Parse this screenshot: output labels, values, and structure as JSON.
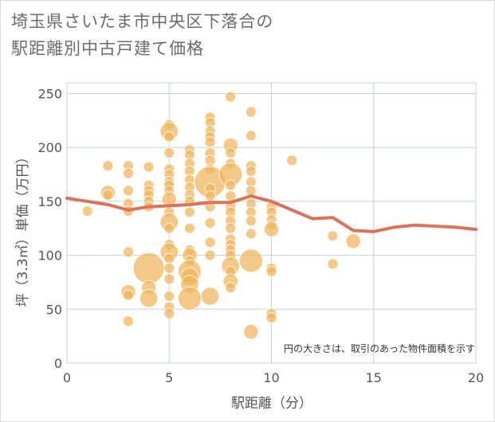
{
  "chart_data": {
    "type": "scatter",
    "title_lines": [
      "埼玉県さいたま市中央区下落合の",
      "駅距離別中古戸建て価格"
    ],
    "xlabel": "駅距離（分）",
    "ylabel": "坪（3.3㎡）単価（万円）",
    "xlim": [
      0,
      20
    ],
    "ylim": [
      0,
      260
    ],
    "xticks": [
      0,
      5,
      10,
      15,
      20
    ],
    "yticks": [
      0,
      50,
      100,
      150,
      200,
      250
    ],
    "grid": true,
    "annotation": "円の大きさは、取引のあった物件面積を示す",
    "colors": {
      "bubble": "#f0b45a",
      "line": "#d9735a"
    },
    "scatter_points": [
      {
        "x": 1,
        "y": 141,
        "s": 1
      },
      {
        "x": 2,
        "y": 183,
        "s": 1
      },
      {
        "x": 2,
        "y": 158,
        "s": 2
      },
      {
        "x": 2,
        "y": 156,
        "s": 1
      },
      {
        "x": 3,
        "y": 183,
        "s": 1
      },
      {
        "x": 3,
        "y": 176,
        "s": 1
      },
      {
        "x": 3,
        "y": 160,
        "s": 1
      },
      {
        "x": 3,
        "y": 148,
        "s": 1
      },
      {
        "x": 3,
        "y": 141,
        "s": 1
      },
      {
        "x": 3,
        "y": 103,
        "s": 1
      },
      {
        "x": 3,
        "y": 66,
        "s": 2
      },
      {
        "x": 3,
        "y": 63,
        "s": 1
      },
      {
        "x": 3,
        "y": 39,
        "s": 1
      },
      {
        "x": 4,
        "y": 182,
        "s": 1
      },
      {
        "x": 4,
        "y": 165,
        "s": 1
      },
      {
        "x": 4,
        "y": 160,
        "s": 1
      },
      {
        "x": 4,
        "y": 156,
        "s": 1
      },
      {
        "x": 4,
        "y": 150,
        "s": 1
      },
      {
        "x": 4,
        "y": 145,
        "s": 1
      },
      {
        "x": 4,
        "y": 88,
        "s": 9
      },
      {
        "x": 4,
        "y": 70,
        "s": 2
      },
      {
        "x": 4,
        "y": 60,
        "s": 3
      },
      {
        "x": 5,
        "y": 221,
        "s": 1
      },
      {
        "x": 5,
        "y": 215,
        "s": 3
      },
      {
        "x": 5,
        "y": 210,
        "s": 1
      },
      {
        "x": 5,
        "y": 195,
        "s": 1
      },
      {
        "x": 5,
        "y": 180,
        "s": 1
      },
      {
        "x": 5,
        "y": 175,
        "s": 1
      },
      {
        "x": 5,
        "y": 168,
        "s": 1
      },
      {
        "x": 5,
        "y": 165,
        "s": 1
      },
      {
        "x": 5,
        "y": 160,
        "s": 1
      },
      {
        "x": 5,
        "y": 152,
        "s": 2
      },
      {
        "x": 5,
        "y": 140,
        "s": 1
      },
      {
        "x": 5,
        "y": 131,
        "s": 3
      },
      {
        "x": 5,
        "y": 125,
        "s": 1
      },
      {
        "x": 5,
        "y": 110,
        "s": 1
      },
      {
        "x": 5,
        "y": 103,
        "s": 3
      },
      {
        "x": 5,
        "y": 97,
        "s": 1
      },
      {
        "x": 5,
        "y": 88,
        "s": 1
      },
      {
        "x": 5,
        "y": 78,
        "s": 1
      },
      {
        "x": 5,
        "y": 62,
        "s": 1
      },
      {
        "x": 5,
        "y": 52,
        "s": 1
      },
      {
        "x": 5,
        "y": 46,
        "s": 1
      },
      {
        "x": 6,
        "y": 198,
        "s": 1
      },
      {
        "x": 6,
        "y": 193,
        "s": 1
      },
      {
        "x": 6,
        "y": 185,
        "s": 1
      },
      {
        "x": 6,
        "y": 178,
        "s": 1
      },
      {
        "x": 6,
        "y": 170,
        "s": 1
      },
      {
        "x": 6,
        "y": 163,
        "s": 1
      },
      {
        "x": 6,
        "y": 156,
        "s": 1
      },
      {
        "x": 6,
        "y": 150,
        "s": 1
      },
      {
        "x": 6,
        "y": 140,
        "s": 1
      },
      {
        "x": 6,
        "y": 125,
        "s": 1
      },
      {
        "x": 6,
        "y": 105,
        "s": 1
      },
      {
        "x": 6,
        "y": 100,
        "s": 2
      },
      {
        "x": 6,
        "y": 95,
        "s": 1
      },
      {
        "x": 6,
        "y": 85,
        "s": 5
      },
      {
        "x": 6,
        "y": 80,
        "s": 3
      },
      {
        "x": 6,
        "y": 73,
        "s": 3
      },
      {
        "x": 6,
        "y": 60,
        "s": 5
      },
      {
        "x": 7,
        "y": 228,
        "s": 1
      },
      {
        "x": 7,
        "y": 223,
        "s": 1
      },
      {
        "x": 7,
        "y": 215,
        "s": 1
      },
      {
        "x": 7,
        "y": 210,
        "s": 1
      },
      {
        "x": 7,
        "y": 205,
        "s": 1
      },
      {
        "x": 7,
        "y": 195,
        "s": 1
      },
      {
        "x": 7,
        "y": 188,
        "s": 1
      },
      {
        "x": 7,
        "y": 180,
        "s": 1
      },
      {
        "x": 7,
        "y": 168,
        "s": 9
      },
      {
        "x": 7,
        "y": 162,
        "s": 1
      },
      {
        "x": 7,
        "y": 155,
        "s": 1
      },
      {
        "x": 7,
        "y": 145,
        "s": 1
      },
      {
        "x": 7,
        "y": 130,
        "s": 1
      },
      {
        "x": 7,
        "y": 112,
        "s": 1
      },
      {
        "x": 7,
        "y": 100,
        "s": 1
      },
      {
        "x": 7,
        "y": 62,
        "s": 3
      },
      {
        "x": 8,
        "y": 247,
        "s": 1
      },
      {
        "x": 8,
        "y": 202,
        "s": 2
      },
      {
        "x": 8,
        "y": 195,
        "s": 1
      },
      {
        "x": 8,
        "y": 185,
        "s": 1
      },
      {
        "x": 8,
        "y": 175,
        "s": 5
      },
      {
        "x": 8,
        "y": 165,
        "s": 1
      },
      {
        "x": 8,
        "y": 155,
        "s": 1
      },
      {
        "x": 8,
        "y": 145,
        "s": 1
      },
      {
        "x": 8,
        "y": 140,
        "s": 1
      },
      {
        "x": 8,
        "y": 132,
        "s": 1
      },
      {
        "x": 8,
        "y": 125,
        "s": 1
      },
      {
        "x": 8,
        "y": 115,
        "s": 1
      },
      {
        "x": 8,
        "y": 110,
        "s": 1
      },
      {
        "x": 8,
        "y": 105,
        "s": 1
      },
      {
        "x": 8,
        "y": 100,
        "s": 1
      },
      {
        "x": 8,
        "y": 90,
        "s": 3
      },
      {
        "x": 8,
        "y": 85,
        "s": 1
      },
      {
        "x": 8,
        "y": 76,
        "s": 2
      },
      {
        "x": 8,
        "y": 70,
        "s": 1
      },
      {
        "x": 9,
        "y": 233,
        "s": 1
      },
      {
        "x": 9,
        "y": 211,
        "s": 1
      },
      {
        "x": 9,
        "y": 183,
        "s": 1
      },
      {
        "x": 9,
        "y": 178,
        "s": 1
      },
      {
        "x": 9,
        "y": 168,
        "s": 1
      },
      {
        "x": 9,
        "y": 160,
        "s": 1
      },
      {
        "x": 9,
        "y": 148,
        "s": 1
      },
      {
        "x": 9,
        "y": 140,
        "s": 1
      },
      {
        "x": 9,
        "y": 132,
        "s": 1
      },
      {
        "x": 9,
        "y": 120,
        "s": 1
      },
      {
        "x": 9,
        "y": 95,
        "s": 5
      },
      {
        "x": 9,
        "y": 29,
        "s": 2
      },
      {
        "x": 10,
        "y": 145,
        "s": 1
      },
      {
        "x": 10,
        "y": 140,
        "s": 1
      },
      {
        "x": 10,
        "y": 133,
        "s": 1
      },
      {
        "x": 10,
        "y": 128,
        "s": 1
      },
      {
        "x": 10,
        "y": 124,
        "s": 2
      },
      {
        "x": 10,
        "y": 88,
        "s": 1
      },
      {
        "x": 10,
        "y": 85,
        "s": 1
      },
      {
        "x": 10,
        "y": 46,
        "s": 1
      },
      {
        "x": 10,
        "y": 42,
        "s": 1
      },
      {
        "x": 11,
        "y": 188,
        "s": 1
      },
      {
        "x": 13,
        "y": 118,
        "s": 1
      },
      {
        "x": 13,
        "y": 92,
        "s": 1
      },
      {
        "x": 14,
        "y": 113,
        "s": 2
      }
    ],
    "line": {
      "x": [
        0,
        1,
        2,
        3,
        4,
        5,
        6,
        7,
        8,
        9,
        10,
        11,
        12,
        13,
        14,
        15,
        16,
        17,
        18,
        19,
        20
      ],
      "y": [
        153,
        150,
        147,
        142,
        145,
        146,
        147,
        149,
        149,
        155,
        150,
        142,
        134,
        135,
        123,
        122,
        126,
        128,
        127,
        126,
        124
      ]
    }
  }
}
